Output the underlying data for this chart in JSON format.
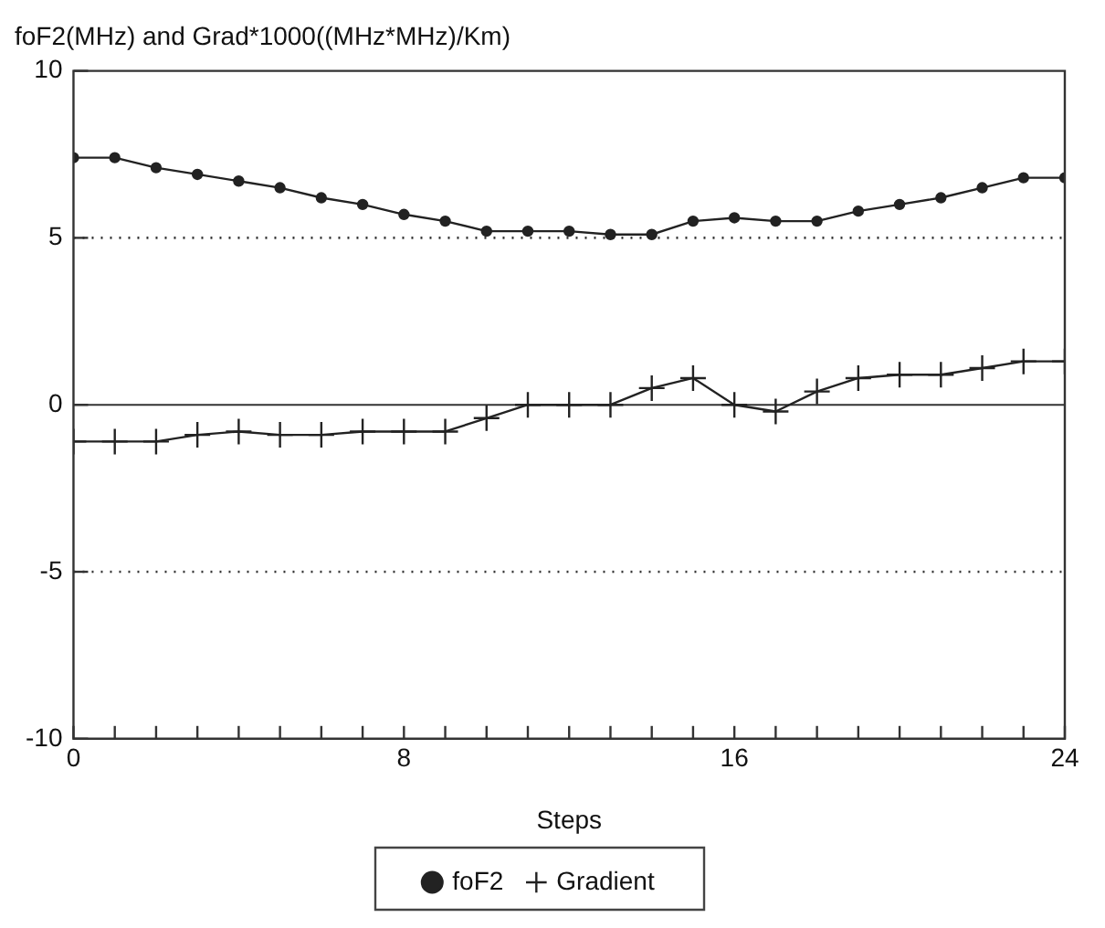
{
  "chart_data": {
    "type": "line",
    "title": "foF2(MHz) and Grad*1000((MHz*MHz)/Km)",
    "xlabel": "Steps",
    "x": [
      0,
      1,
      2,
      3,
      4,
      5,
      6,
      7,
      8,
      9,
      10,
      11,
      12,
      13,
      14,
      15,
      16,
      17,
      18,
      19,
      20,
      21,
      22,
      23,
      24
    ],
    "series": [
      {
        "name": "foF2",
        "color": "#222222",
        "marker": "circle",
        "values": [
          7.4,
          7.4,
          7.1,
          6.9,
          6.7,
          6.5,
          6.2,
          6.0,
          5.7,
          5.5,
          5.2,
          5.2,
          5.2,
          5.1,
          5.1,
          5.5,
          5.6,
          5.5,
          5.5,
          5.8,
          6.0,
          6.2,
          6.5,
          6.8,
          6.8
        ]
      },
      {
        "name": "Gradient",
        "color": "#222222",
        "marker": "cross",
        "values": [
          -1.1,
          -1.1,
          -1.1,
          -0.9,
          -0.8,
          -0.9,
          -0.9,
          -0.8,
          -0.8,
          -0.8,
          -0.4,
          0,
          0,
          0,
          0.5,
          0.8,
          0,
          -0.2,
          0.4,
          0.8,
          0.9,
          0.9,
          1.1,
          1.3,
          1.3
        ]
      }
    ],
    "xlim": [
      0,
      24
    ],
    "xticks": [
      0,
      {
        "value": 1,
        "label": null
      },
      {
        "value": 2,
        "label": null
      },
      {
        "value": 3,
        "label": null
      },
      {
        "value": 4,
        "label": null
      },
      {
        "value": 5,
        "label": null
      },
      {
        "value": 6,
        "label": null
      },
      {
        "value": 7,
        "label": null
      },
      8,
      {
        "value": 9,
        "label": null
      },
      {
        "value": 10,
        "label": null
      },
      {
        "value": 11,
        "label": null
      },
      {
        "value": 12,
        "label": null
      },
      {
        "value": 13,
        "label": null
      },
      {
        "value": 14,
        "label": null
      },
      {
        "value": 15,
        "label": null
      },
      16,
      {
        "value": 17,
        "label": null
      },
      {
        "value": 18,
        "label": null
      },
      {
        "value": 19,
        "label": null
      },
      {
        "value": 20,
        "label": null
      },
      {
        "value": 21,
        "label": null
      },
      {
        "value": 22,
        "label": null
      },
      {
        "value": 23,
        "label": null
      },
      24
    ],
    "ylim": [
      -10,
      10
    ],
    "yticks": [
      -10,
      -5,
      0,
      5,
      10
    ],
    "ref_lines": [
      {
        "axis": "y",
        "value": 5,
        "line_style": "dotted"
      },
      {
        "axis": "y",
        "value": 0,
        "line_style": "solid"
      },
      {
        "axis": "y",
        "value": -5,
        "line_style": "dotted"
      }
    ],
    "legend": "bottom",
    "line_style": "solid"
  }
}
